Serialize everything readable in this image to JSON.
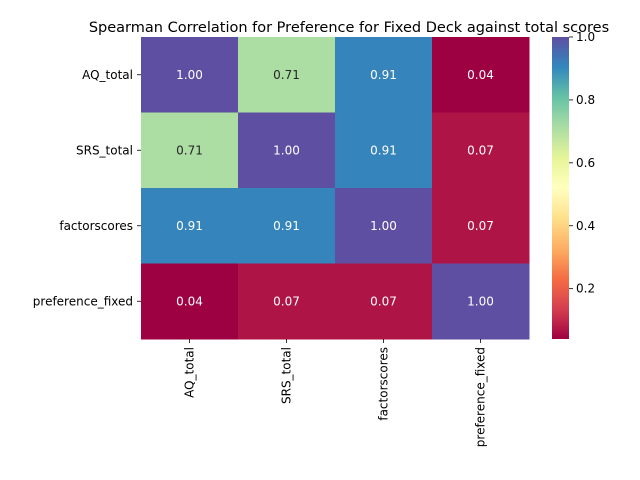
{
  "chart_data": {
    "type": "heatmap",
    "title": "Spearman Correlation for Preference for Fixed Deck against total scores",
    "row_labels": [
      "AQ_total",
      "SRS_total",
      "factorscores",
      "preference_fixed"
    ],
    "col_labels": [
      "AQ_total",
      "SRS_total",
      "factorscores",
      "preference_fixed"
    ],
    "values": [
      [
        1.0,
        0.71,
        0.91,
        0.04
      ],
      [
        0.71,
        1.0,
        0.91,
        0.07
      ],
      [
        0.91,
        0.91,
        1.0,
        0.07
      ],
      [
        0.04,
        0.07,
        0.07,
        1.0
      ]
    ],
    "annotations": [
      [
        "1.00",
        "0.71",
        "0.91",
        "0.04"
      ],
      [
        "0.71",
        "1.00",
        "0.91",
        "0.07"
      ],
      [
        "0.91",
        "0.91",
        "1.00",
        "0.07"
      ],
      [
        "0.04",
        "0.07",
        "0.07",
        "1.00"
      ]
    ],
    "colormap": "Spectral",
    "colorbar": {
      "min": 0.04,
      "max": 1.0,
      "ticks": [
        0.2,
        0.4,
        0.6,
        0.8,
        1.0
      ],
      "tick_labels": [
        "0.2",
        "0.4",
        "0.6",
        "0.8",
        "1.0"
      ]
    }
  }
}
